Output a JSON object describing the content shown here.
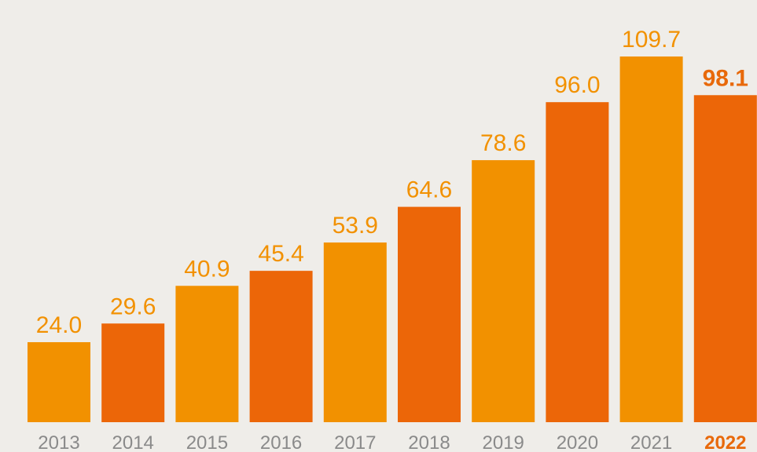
{
  "chart_data": {
    "type": "bar",
    "categories": [
      "2013",
      "2014",
      "2015",
      "2016",
      "2017",
      "2018",
      "2019",
      "2020",
      "2021",
      "2022"
    ],
    "values": [
      24.0,
      29.6,
      40.9,
      45.4,
      53.9,
      64.6,
      78.6,
      96.0,
      109.7,
      98.1
    ],
    "value_labels": [
      "24.0",
      "29.6",
      "40.9",
      "45.4",
      "53.9",
      "64.6",
      "78.6",
      "96.0",
      "109.7",
      "98.1"
    ],
    "colors": [
      "#f29100",
      "#ec6608",
      "#f29100",
      "#ec6608",
      "#f29100",
      "#ec6608",
      "#f29100",
      "#ec6608",
      "#f29100",
      "#ec6608"
    ],
    "highlight": 9
  }
}
